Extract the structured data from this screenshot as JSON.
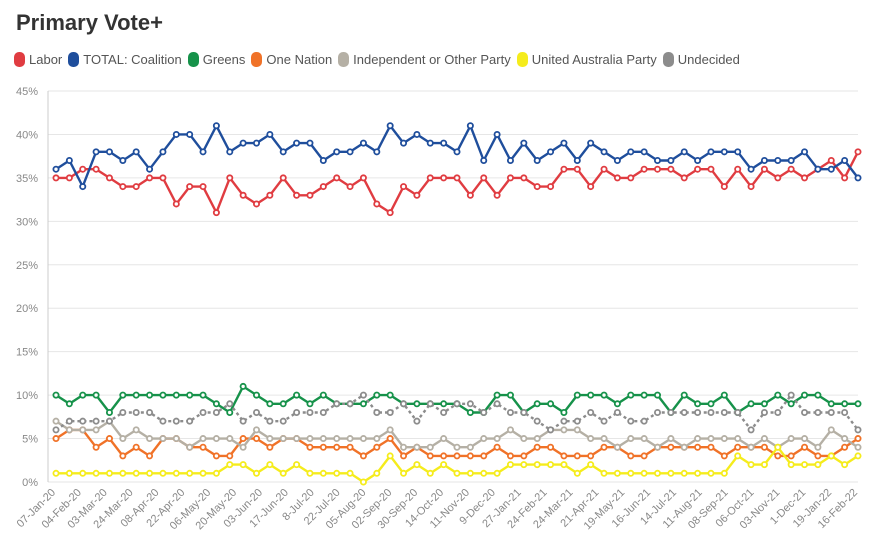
{
  "chart_data": {
    "type": "line",
    "title": "Primary Vote+",
    "xlabel": "",
    "ylabel": "",
    "ylim": [
      0,
      45
    ],
    "y_ticks": [
      "0%",
      "5%",
      "10%",
      "15%",
      "20%",
      "25%",
      "30%",
      "35%",
      "40%",
      "45%"
    ],
    "x_tick_labels": [
      "07-Jan-20",
      "04-Feb-20",
      "03-Mar-20",
      "24-Mar-20",
      "08-Apr-20",
      "22-Apr-20",
      "06-May-20",
      "20-May-20",
      "03-Jun-20",
      "17-Jun-20",
      "8-Jul-20",
      "22-Jul-20",
      "05-Aug-20",
      "02-Sep-20",
      "30-Sep-20",
      "14-Oct-20",
      "11-Nov-20",
      "9-Dec-20",
      "27-Jan-21",
      "24-Feb-21",
      "24-Mar-21",
      "21-Apr-21",
      "19-May-21",
      "16-Jun-21",
      "14-Jul-21",
      "11-Aug-21",
      "08-Sep-21",
      "06-Oct-21",
      "03-Nov-21",
      "1-Dec-21",
      "19-Jan-22",
      "16-Feb-22"
    ],
    "n_points": 61,
    "series": [
      {
        "name": "Labor",
        "color": "#e03c41",
        "dashed": false,
        "values": [
          35,
          35,
          36,
          36,
          35,
          34,
          34,
          35,
          35,
          32,
          34,
          34,
          31,
          35,
          33,
          32,
          33,
          35,
          33,
          33,
          34,
          35,
          34,
          35,
          32,
          31,
          34,
          33,
          35,
          35,
          35,
          33,
          35,
          33,
          35,
          35,
          34,
          34,
          36,
          36,
          34,
          36,
          35,
          35,
          36,
          36,
          36,
          35,
          36,
          36,
          34,
          36,
          34,
          36,
          35,
          36,
          35,
          36,
          37,
          35,
          38
        ]
      },
      {
        "name": "TOTAL: Coalition",
        "color": "#1f4e9c",
        "dashed": false,
        "values": [
          36,
          37,
          34,
          38,
          38,
          37,
          38,
          36,
          38,
          40,
          40,
          38,
          41,
          38,
          39,
          39,
          40,
          38,
          39,
          39,
          37,
          38,
          38,
          39,
          38,
          41,
          39,
          40,
          39,
          39,
          38,
          41,
          37,
          40,
          37,
          39,
          37,
          38,
          39,
          37,
          39,
          38,
          37,
          38,
          38,
          37,
          37,
          38,
          37,
          38,
          38,
          38,
          36,
          37,
          37,
          37,
          38,
          36,
          36,
          37,
          35
        ]
      },
      {
        "name": "Greens",
        "color": "#16924a",
        "dashed": false,
        "values": [
          10,
          9,
          10,
          10,
          8,
          10,
          10,
          10,
          10,
          10,
          10,
          10,
          9,
          8,
          11,
          10,
          9,
          9,
          10,
          9,
          10,
          9,
          9,
          9,
          10,
          10,
          9,
          9,
          9,
          9,
          9,
          8,
          8,
          10,
          10,
          8,
          9,
          9,
          8,
          10,
          10,
          10,
          9,
          10,
          10,
          10,
          8,
          10,
          9,
          9,
          10,
          8,
          9,
          9,
          10,
          9,
          10,
          10,
          9,
          9,
          9
        ]
      },
      {
        "name": "One Nation",
        "color": "#f07228",
        "dashed": false,
        "values": [
          5,
          6,
          6,
          4,
          5,
          3,
          4,
          3,
          5,
          5,
          4,
          4,
          3,
          3,
          5,
          5,
          4,
          5,
          5,
          4,
          4,
          4,
          4,
          3,
          4,
          5,
          3,
          4,
          3,
          3,
          3,
          3,
          3,
          4,
          3,
          3,
          4,
          4,
          3,
          3,
          3,
          4,
          4,
          3,
          3,
          4,
          4,
          4,
          4,
          4,
          3,
          4,
          4,
          4,
          3,
          3,
          4,
          3,
          3,
          4,
          5
        ]
      },
      {
        "name": "Independent or Other Party",
        "color": "#b5b0a5",
        "dashed": false,
        "values": [
          7,
          6,
          6,
          6,
          7,
          5,
          6,
          5,
          5,
          5,
          4,
          5,
          5,
          5,
          4,
          6,
          5,
          5,
          5,
          5,
          5,
          5,
          5,
          5,
          5,
          6,
          4,
          4,
          4,
          5,
          4,
          4,
          5,
          5,
          6,
          5,
          5,
          6,
          6,
          6,
          5,
          5,
          4,
          5,
          5,
          4,
          5,
          4,
          5,
          5,
          5,
          5,
          4,
          5,
          4,
          5,
          5,
          4,
          6,
          5,
          4
        ]
      },
      {
        "name": "United Australia Party",
        "color": "#f5ec1c",
        "dashed": false,
        "values": [
          1,
          1,
          1,
          1,
          1,
          1,
          1,
          1,
          1,
          1,
          1,
          1,
          1,
          2,
          2,
          1,
          2,
          1,
          2,
          1,
          1,
          1,
          1,
          0,
          1,
          3,
          1,
          2,
          1,
          2,
          1,
          1,
          1,
          1,
          2,
          2,
          2,
          2,
          2,
          1,
          2,
          1,
          1,
          1,
          1,
          1,
          1,
          1,
          1,
          1,
          1,
          3,
          2,
          2,
          4,
          2,
          2,
          2,
          3,
          2,
          3
        ]
      },
      {
        "name": "Undecided",
        "color": "#8c8c8c",
        "dashed": true,
        "values": [
          6,
          7,
          7,
          7,
          7,
          8,
          8,
          8,
          7,
          7,
          7,
          8,
          8,
          9,
          7,
          8,
          7,
          7,
          8,
          8,
          8,
          9,
          9,
          10,
          8,
          8,
          9,
          7,
          9,
          8,
          9,
          9,
          8,
          9,
          8,
          8,
          7,
          6,
          7,
          7,
          8,
          7,
          8,
          7,
          7,
          8,
          8,
          8,
          8,
          8,
          8,
          8,
          6,
          8,
          8,
          10,
          8,
          8,
          8,
          8,
          6
        ]
      }
    ]
  }
}
